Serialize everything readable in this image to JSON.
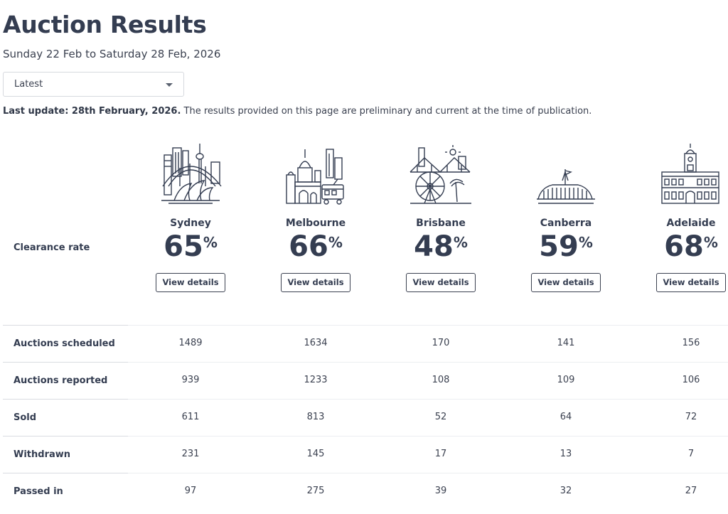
{
  "header": {
    "title": "Auction Results",
    "date_range": "Sunday 22 Feb to Saturday 28 Feb, 2026"
  },
  "period_select": {
    "value": "Latest"
  },
  "update_note": {
    "bold": "Last update: 28th February, 2026.",
    "text": " The results provided on this page are preliminary and current at the time of publication."
  },
  "clearance_label": "Clearance rate",
  "cities": [
    {
      "name": "Sydney",
      "rate": "65",
      "unit": "%",
      "button": "View details",
      "icon": "sydney-skyline-icon"
    },
    {
      "name": "Melbourne",
      "rate": "66",
      "unit": "%",
      "button": "View details",
      "icon": "melbourne-skyline-icon"
    },
    {
      "name": "Brisbane",
      "rate": "48",
      "unit": "%",
      "button": "View details",
      "icon": "brisbane-skyline-icon"
    },
    {
      "name": "Canberra",
      "rate": "59",
      "unit": "%",
      "button": "View details",
      "icon": "canberra-parliament-icon"
    },
    {
      "name": "Adelaide",
      "rate": "68",
      "unit": "%",
      "button": "View details",
      "icon": "adelaide-town-hall-icon"
    }
  ],
  "stats": [
    {
      "label": "Auctions scheduled",
      "values": [
        "1489",
        "1634",
        "170",
        "141",
        "156"
      ]
    },
    {
      "label": "Auctions reported",
      "values": [
        "939",
        "1233",
        "108",
        "109",
        "106"
      ]
    },
    {
      "label": "Sold",
      "values": [
        "611",
        "813",
        "52",
        "64",
        "72"
      ]
    },
    {
      "label": "Withdrawn",
      "values": [
        "231",
        "145",
        "17",
        "13",
        "7"
      ]
    },
    {
      "label": "Passed in",
      "values": [
        "97",
        "275",
        "39",
        "32",
        "27"
      ]
    }
  ]
}
